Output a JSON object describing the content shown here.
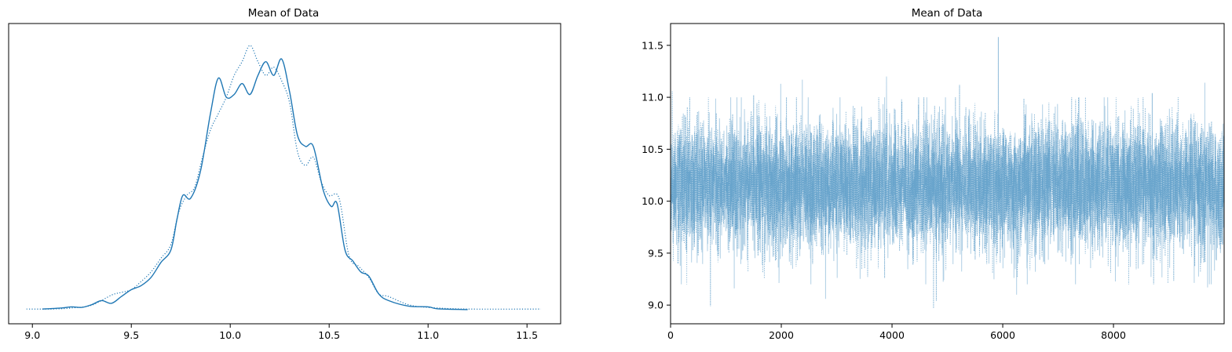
{
  "chart_data": [
    {
      "type": "line",
      "title": "Mean of Data",
      "xlabel": "",
      "ylabel": "",
      "xlim": [
        8.88,
        11.67
      ],
      "ylim": [
        -0.05,
        1.05
      ],
      "x_ticks": [
        "9.0",
        "9.5",
        "10.0",
        "10.5",
        "11.0",
        "11.5"
      ],
      "x_tick_values": [
        9.0,
        9.5,
        10.0,
        10.5,
        11.0,
        11.5
      ],
      "y_ticks": [],
      "grid": false,
      "series": [
        {
          "line_style": "solid",
          "color": "#1f77b4",
          "points": [
            [
              9.05,
              0.004
            ],
            [
              9.15,
              0.008
            ],
            [
              9.2,
              0.012
            ],
            [
              9.25,
              0.01
            ],
            [
              9.3,
              0.02
            ],
            [
              9.35,
              0.035
            ],
            [
              9.4,
              0.025
            ],
            [
              9.45,
              0.05
            ],
            [
              9.5,
              0.075
            ],
            [
              9.55,
              0.09
            ],
            [
              9.6,
              0.12
            ],
            [
              9.65,
              0.175
            ],
            [
              9.7,
              0.22
            ],
            [
              9.73,
              0.33
            ],
            [
              9.76,
              0.42
            ],
            [
              9.8,
              0.41
            ],
            [
              9.85,
              0.51
            ],
            [
              9.9,
              0.72
            ],
            [
              9.94,
              0.85
            ],
            [
              9.98,
              0.78
            ],
            [
              10.02,
              0.79
            ],
            [
              10.06,
              0.83
            ],
            [
              10.1,
              0.79
            ],
            [
              10.14,
              0.86
            ],
            [
              10.18,
              0.91
            ],
            [
              10.22,
              0.86
            ],
            [
              10.26,
              0.92
            ],
            [
              10.3,
              0.8
            ],
            [
              10.34,
              0.64
            ],
            [
              10.38,
              0.6
            ],
            [
              10.42,
              0.6
            ],
            [
              10.47,
              0.44
            ],
            [
              10.51,
              0.38
            ],
            [
              10.54,
              0.39
            ],
            [
              10.58,
              0.22
            ],
            [
              10.62,
              0.18
            ],
            [
              10.66,
              0.14
            ],
            [
              10.7,
              0.125
            ],
            [
              10.75,
              0.06
            ],
            [
              10.8,
              0.035
            ],
            [
              10.9,
              0.015
            ],
            [
              11.0,
              0.012
            ],
            [
              11.05,
              0.005
            ],
            [
              11.2,
              0.002
            ]
          ]
        },
        {
          "line_style": "dotted",
          "color": "#1f77b4",
          "points": [
            [
              8.97,
              0.004
            ],
            [
              9.1,
              0.004
            ],
            [
              9.2,
              0.008
            ],
            [
              9.3,
              0.018
            ],
            [
              9.4,
              0.055
            ],
            [
              9.45,
              0.065
            ],
            [
              9.5,
              0.075
            ],
            [
              9.55,
              0.105
            ],
            [
              9.6,
              0.14
            ],
            [
              9.65,
              0.19
            ],
            [
              9.7,
              0.24
            ],
            [
              9.74,
              0.36
            ],
            [
              9.78,
              0.42
            ],
            [
              9.82,
              0.45
            ],
            [
              9.86,
              0.56
            ],
            [
              9.9,
              0.66
            ],
            [
              9.94,
              0.72
            ],
            [
              9.98,
              0.78
            ],
            [
              10.02,
              0.86
            ],
            [
              10.06,
              0.91
            ],
            [
              10.1,
              0.97
            ],
            [
              10.14,
              0.91
            ],
            [
              10.18,
              0.86
            ],
            [
              10.22,
              0.89
            ],
            [
              10.26,
              0.84
            ],
            [
              10.3,
              0.76
            ],
            [
              10.34,
              0.58
            ],
            [
              10.38,
              0.53
            ],
            [
              10.42,
              0.56
            ],
            [
              10.46,
              0.47
            ],
            [
              10.5,
              0.42
            ],
            [
              10.55,
              0.41
            ],
            [
              10.6,
              0.2
            ],
            [
              10.65,
              0.16
            ],
            [
              10.7,
              0.12
            ],
            [
              10.75,
              0.06
            ],
            [
              10.8,
              0.05
            ],
            [
              10.9,
              0.02
            ],
            [
              11.0,
              0.01
            ],
            [
              11.2,
              0.004
            ],
            [
              11.57,
              0.004
            ]
          ]
        }
      ]
    },
    {
      "type": "line",
      "title": "Mean of Data",
      "xlabel": "",
      "ylabel": "",
      "xlim": [
        0,
        9999
      ],
      "ylim": [
        8.82,
        11.71
      ],
      "x_ticks": [
        "0",
        "2000",
        "4000",
        "6000",
        "8000"
      ],
      "x_tick_values": [
        0,
        2000,
        4000,
        6000,
        8000
      ],
      "y_ticks": [
        "9.0",
        "9.5",
        "10.0",
        "10.5",
        "11.0",
        "11.5"
      ],
      "y_tick_values": [
        9.0,
        9.5,
        10.0,
        10.5,
        11.0,
        11.5
      ],
      "grid": false,
      "trace": {
        "n_draws": 10000,
        "mean": 10.15,
        "sd": 0.3
      },
      "series": [
        {
          "line_style": "solid",
          "color": "#1f77b4",
          "opacity": 0.35,
          "extremes": [
            [
              2380,
              11.17
            ],
            [
              1990,
              11.13
            ],
            [
              3900,
              11.2
            ],
            [
              2800,
              9.06
            ],
            [
              6250,
              9.1
            ],
            [
              1150,
              9.16
            ],
            [
              9650,
              11.14
            ],
            [
              9700,
              9.17
            ]
          ]
        },
        {
          "line_style": "dotted",
          "color": "#1f77b4",
          "opacity": 0.5,
          "extremes": [
            [
              5920,
              11.58
            ],
            [
              4750,
              8.97
            ],
            [
              4800,
              9.04
            ],
            [
              720,
              8.99
            ],
            [
              30,
              11.06
            ],
            [
              5220,
              11.12
            ],
            [
              1500,
              11.02
            ],
            [
              8700,
              11.04
            ]
          ]
        }
      ]
    }
  ]
}
